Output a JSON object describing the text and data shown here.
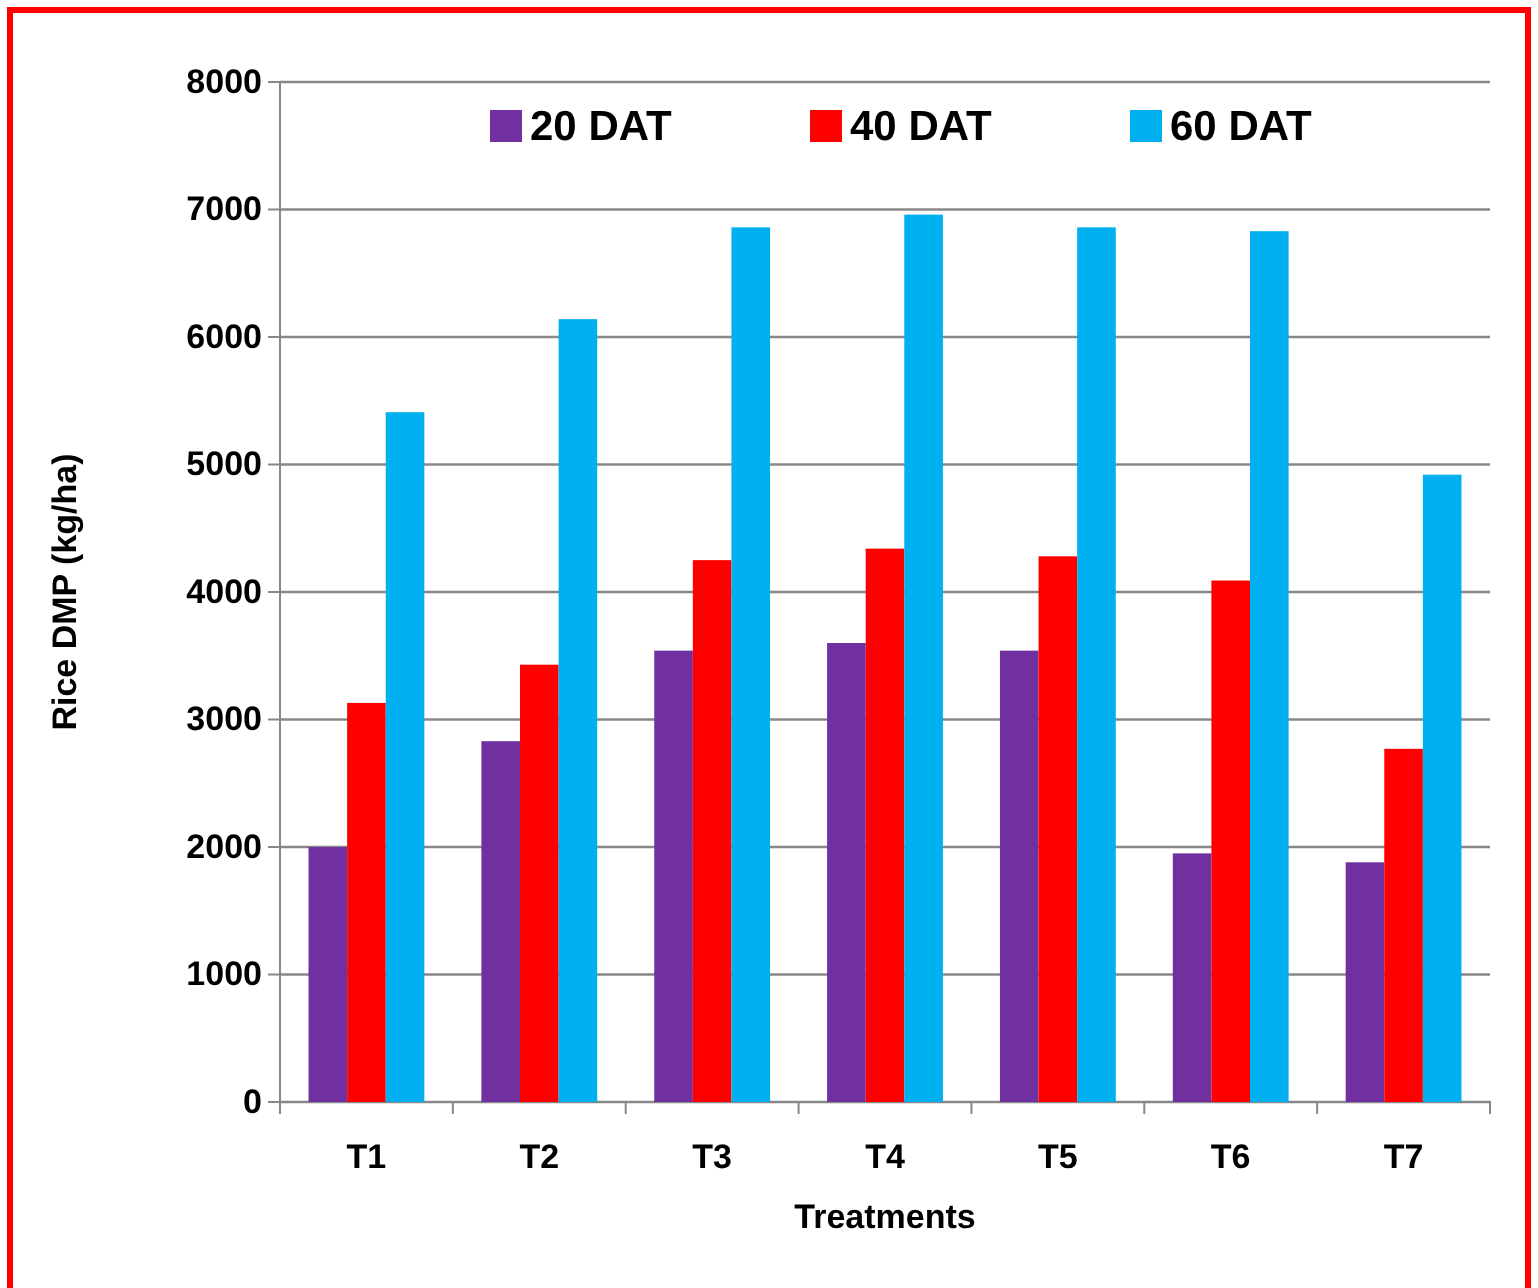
{
  "chart_data": {
    "type": "bar",
    "xlabel": "Treatments",
    "ylabel": "Rice DMP (kg/ha)",
    "categories": [
      "T1",
      "T2",
      "T3",
      "T4",
      "T5",
      "T6",
      "T7"
    ],
    "series": [
      {
        "name": "20 DAT",
        "color": "#7030a0",
        "values": [
          2000,
          2830,
          3540,
          3600,
          3540,
          1950,
          1880
        ]
      },
      {
        "name": "40 DAT",
        "color": "#ff0000",
        "values": [
          3130,
          3430,
          4250,
          4340,
          4280,
          4090,
          2770
        ]
      },
      {
        "name": "60 DAT",
        "color": "#00b0f0",
        "values": [
          5410,
          6140,
          6860,
          6960,
          6860,
          6830,
          4920
        ]
      }
    ],
    "ylim": [
      0,
      8000
    ],
    "yticks": [
      0,
      1000,
      2000,
      3000,
      4000,
      5000,
      6000,
      7000,
      8000
    ],
    "grid": "y",
    "legend": "top"
  }
}
